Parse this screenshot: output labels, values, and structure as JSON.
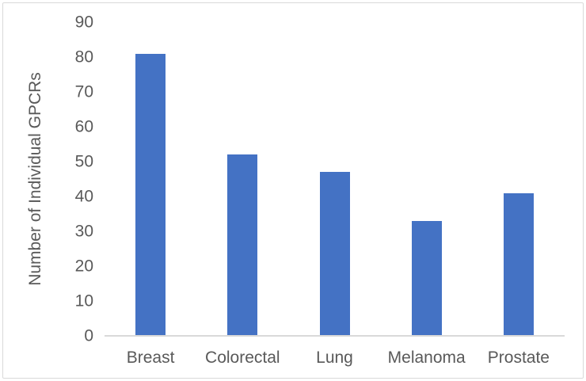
{
  "chart_data": {
    "type": "bar",
    "categories": [
      "Breast",
      "Colorectal",
      "Lung",
      "Melanoma",
      "Prostate"
    ],
    "values": [
      81,
      52,
      47,
      33,
      41
    ],
    "title": "",
    "xlabel": "",
    "ylabel": "Number of Individual GPCRs",
    "ylim": [
      0,
      90
    ],
    "yticks": [
      0,
      10,
      20,
      30,
      40,
      50,
      60,
      70,
      80,
      90
    ],
    "grid": false,
    "legend": "none"
  },
  "colors": {
    "bar": "#4472C4",
    "axis_line": "#D9D9D9",
    "text": "#595959",
    "border": "#D9D9D9",
    "background": "#FFFFFF"
  }
}
